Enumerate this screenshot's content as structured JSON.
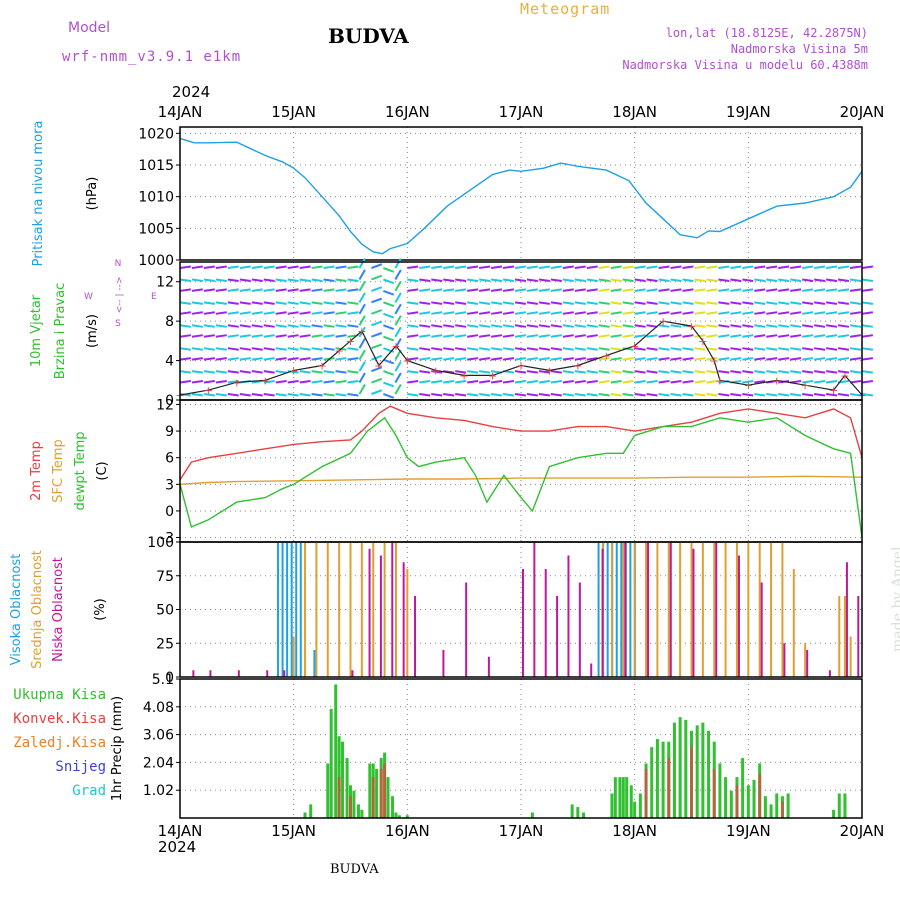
{
  "header": {
    "model_label": "Model",
    "model_name": "wrf-nmm_v3.9.1 e1km",
    "station": "BUDVA",
    "product": "Meteogram",
    "coords": "lon,lat (18.8125E, 42.2875N)",
    "elevation": "Nadmorska Visina 5m",
    "model_elevation": "Nadmorska Visina u modelu 60.4388m",
    "year": "2024",
    "footer_station": "BUDVA",
    "watermark": "made by Angel"
  },
  "colors": {
    "pressure": "#1ea0e6",
    "temp2m": "#e84040",
    "sfc_temp": "#e0a030",
    "dewpoint": "#30c030",
    "high_cloud": "#1ea0e6",
    "mid_cloud": "#e0a030",
    "low_cloud": "#c0189c",
    "total_precip": "#30c030",
    "conv_precip": "#e84040",
    "frozen_precip": "#f08020",
    "snow": "#4040e0",
    "grad": "#20c8c8",
    "title_purple": "#b050d0",
    "product_orange": "#e8b040"
  },
  "chart_data": [
    {
      "type": "line",
      "panel": "pressure",
      "labels": [
        "Pritisak na nivou mora",
        "(hPa)"
      ],
      "x_ticks": [
        "14JAN",
        "15JAN",
        "16JAN",
        "17JAN",
        "18JAN",
        "19JAN",
        "20JAN"
      ],
      "x_range_days": [
        0,
        6
      ],
      "ylim": [
        1000,
        1021
      ],
      "y_ticks": [
        1000,
        1005,
        1010,
        1015,
        1020
      ],
      "grid": true,
      "series": [
        {
          "name": "Pritisak na nivou mora",
          "x": [
            0,
            0.125,
            0.25,
            0.5,
            0.75,
            0.9,
            1.0,
            1.1,
            1.25,
            1.4,
            1.5,
            1.6,
            1.7,
            1.78,
            1.85,
            2.0,
            2.15,
            2.35,
            2.55,
            2.75,
            2.9,
            3.0,
            3.2,
            3.35,
            3.5,
            3.75,
            3.95,
            4.1,
            4.25,
            4.4,
            4.55,
            4.65,
            4.75,
            5.0,
            5.25,
            5.5,
            5.75,
            5.9,
            6.0
          ],
          "y": [
            1019.2,
            1018.5,
            1018.5,
            1018.6,
            1016.5,
            1015.5,
            1014.5,
            1013.0,
            1010.0,
            1007.0,
            1004.5,
            1002.5,
            1001.3,
            1001.0,
            1001.8,
            1002.6,
            1005.0,
            1008.5,
            1011.0,
            1013.5,
            1014.2,
            1014.0,
            1014.5,
            1015.3,
            1014.8,
            1014.2,
            1012.5,
            1009.0,
            1006.5,
            1004.0,
            1003.5,
            1004.6,
            1004.5,
            1006.5,
            1008.5,
            1009.0,
            1010.0,
            1011.5,
            1014.0
          ]
        }
      ]
    },
    {
      "type": "barbs",
      "panel": "wind",
      "labels": [
        "10m Vjetar",
        "Brzina i Pravac",
        "(m/s)"
      ],
      "direction_legend": [
        "W",
        "<-- | -->",
        "E",
        "N",
        "S"
      ],
      "ylim": [
        0,
        14
      ],
      "y_ticks": [
        0,
        4,
        8,
        12
      ],
      "grid": true,
      "series": [
        {
          "name": "Brzina",
          "x": [
            0,
            0.25,
            0.5,
            0.75,
            1.0,
            1.25,
            1.4,
            1.5,
            1.6,
            1.75,
            1.9,
            2.0,
            2.25,
            2.5,
            2.75,
            3.0,
            3.25,
            3.5,
            3.75,
            4.0,
            4.25,
            4.5,
            4.6,
            4.7,
            4.75,
            5.0,
            5.25,
            5.5,
            5.75,
            5.85,
            6.0
          ],
          "y": [
            0.5,
            1.0,
            1.8,
            2.0,
            3.0,
            3.5,
            5.0,
            6.0,
            7.0,
            3.5,
            5.5,
            4.0,
            3.0,
            2.5,
            2.5,
            3.5,
            3.0,
            3.5,
            4.5,
            5.5,
            8.0,
            7.5,
            6.0,
            4.0,
            2.0,
            1.5,
            2.0,
            1.5,
            1.0,
            2.5,
            0.5
          ]
        }
      ]
    },
    {
      "type": "line",
      "panel": "temperature",
      "labels": [
        "2m Temp",
        "SFC Temp",
        "dewpt Temp",
        "(C)"
      ],
      "ylim": [
        -3.5,
        12.5
      ],
      "y_ticks": [
        -3,
        0,
        3,
        6,
        9,
        12
      ],
      "grid": true,
      "series": [
        {
          "name": "2m Temp",
          "x": [
            0,
            0.1,
            0.25,
            0.5,
            0.75,
            1.0,
            1.25,
            1.5,
            1.6,
            1.75,
            1.85,
            2.0,
            2.25,
            2.5,
            2.75,
            3.0,
            3.25,
            3.5,
            3.75,
            4.0,
            4.25,
            4.5,
            4.75,
            5.0,
            5.25,
            5.5,
            5.75,
            5.9,
            6.0
          ],
          "y": [
            3.5,
            5.5,
            6.0,
            6.5,
            7.0,
            7.5,
            7.8,
            8.0,
            9.0,
            11.0,
            11.8,
            11.0,
            10.5,
            10.2,
            9.5,
            9.0,
            9.0,
            9.5,
            9.5,
            9.0,
            9.5,
            10.0,
            11.0,
            11.5,
            11.0,
            10.5,
            11.5,
            10.5,
            6.0
          ]
        },
        {
          "name": "SFC Temp",
          "x": [
            0,
            0.25,
            0.5,
            1.0,
            1.5,
            2.0,
            2.5,
            3.0,
            3.5,
            4.0,
            4.5,
            5.0,
            5.5,
            6.0
          ],
          "y": [
            3.0,
            3.2,
            3.3,
            3.4,
            3.5,
            3.6,
            3.6,
            3.7,
            3.7,
            3.7,
            3.8,
            3.8,
            3.9,
            3.8
          ]
        },
        {
          "name": "dewpt Temp",
          "x": [
            0,
            0.1,
            0.25,
            0.5,
            0.75,
            0.9,
            1.0,
            1.25,
            1.5,
            1.65,
            1.8,
            1.9,
            2.0,
            2.1,
            2.25,
            2.5,
            2.6,
            2.7,
            2.85,
            3.0,
            3.1,
            3.25,
            3.5,
            3.75,
            3.9,
            4.0,
            4.25,
            4.5,
            4.75,
            5.0,
            5.25,
            5.5,
            5.75,
            5.9,
            6.0
          ],
          "y": [
            3.0,
            -1.8,
            -1.0,
            1.0,
            1.5,
            2.5,
            3.0,
            5.0,
            6.5,
            9.0,
            10.5,
            8.5,
            6.0,
            5.0,
            5.5,
            6.0,
            4.0,
            1.0,
            4.0,
            1.5,
            0.0,
            5.0,
            6.0,
            6.5,
            6.5,
            8.5,
            9.5,
            9.5,
            10.5,
            10.0,
            10.5,
            8.5,
            7.0,
            6.5,
            -3.0
          ]
        }
      ]
    },
    {
      "type": "bar",
      "panel": "clouds",
      "labels": [
        "Visoka Oblacnost",
        "Srednja Oblacnost",
        "Niska Oblacnost",
        "(%)"
      ],
      "ylim": [
        0,
        100
      ],
      "y_ticks": [
        0,
        25,
        50,
        75,
        100
      ],
      "grid": true,
      "series": [
        {
          "name": "Visoka Oblacnost",
          "x": [
            0.88,
            0.92,
            0.96,
            1.0,
            1.04,
            1.08,
            1.2,
            3.7,
            3.74,
            3.78,
            3.82,
            3.86,
            3.9,
            3.94,
            3.98,
            4.02
          ],
          "y": [
            100,
            100,
            100,
            100,
            100,
            100,
            20,
            100,
            100,
            100,
            100,
            100,
            100,
            100,
            100,
            100
          ]
        },
        {
          "name": "Srednja Oblacnost",
          "x": [
            1.0,
            1.1,
            1.2,
            1.3,
            1.4,
            1.5,
            1.6,
            1.7,
            1.8,
            1.9,
            2.0,
            3.72,
            3.8,
            3.9,
            4.0,
            4.1,
            4.2,
            4.3,
            4.4,
            4.5,
            4.6,
            4.7,
            4.8,
            4.9,
            5.0,
            5.1,
            5.2,
            5.3,
            5.4,
            5.5,
            5.8,
            5.85,
            5.9
          ],
          "y": [
            30,
            100,
            100,
            100,
            100,
            100,
            100,
            100,
            100,
            100,
            80,
            100,
            100,
            100,
            100,
            100,
            100,
            100,
            100,
            100,
            100,
            100,
            100,
            100,
            100,
            100,
            100,
            100,
            80,
            25,
            60,
            60,
            30
          ]
        },
        {
          "name": "Niska Oblacnost",
          "x": [
            0.1,
            0.25,
            0.5,
            0.75,
            0.9,
            1.5,
            1.65,
            1.75,
            1.85,
            1.95,
            2.05,
            2.3,
            2.5,
            2.7,
            3.0,
            3.1,
            3.2,
            3.3,
            3.4,
            3.5,
            3.6,
            3.7,
            3.9,
            4.1,
            4.3,
            4.5,
            4.7,
            4.9,
            5.1,
            5.3,
            5.5,
            5.7,
            5.85,
            5.95
          ],
          "y": [
            5,
            5,
            5,
            5,
            5,
            5,
            95,
            90,
            100,
            85,
            60,
            20,
            70,
            15,
            80,
            100,
            80,
            60,
            90,
            70,
            10,
            95,
            100,
            100,
            100,
            95,
            100,
            90,
            70,
            25,
            20,
            5,
            85,
            60
          ]
        }
      ]
    },
    {
      "type": "bar",
      "panel": "precipitation",
      "labels": [
        "Ukupna Kisa",
        "Konvek.Kisa",
        "Zaledj.Kisa",
        "Snijeg",
        "Grad",
        "1hr Precip (mm)"
      ],
      "ylim": [
        0,
        5.1
      ],
      "y_ticks": [
        1.02,
        2.04,
        3.06,
        4.08,
        5.1
      ],
      "grid": true,
      "series": [
        {
          "name": "Ukupna Kisa",
          "x": [
            1.1,
            1.15,
            1.3,
            1.33,
            1.37,
            1.4,
            1.43,
            1.47,
            1.5,
            1.53,
            1.57,
            1.6,
            1.67,
            1.7,
            1.73,
            1.77,
            1.8,
            1.83,
            1.87,
            1.9,
            1.93,
            2.0,
            3.1,
            3.45,
            3.5,
            3.55,
            3.8,
            3.83,
            3.87,
            3.9,
            3.93,
            3.97,
            4.0,
            4.05,
            4.1,
            4.15,
            4.2,
            4.25,
            4.3,
            4.35,
            4.4,
            4.45,
            4.5,
            4.55,
            4.6,
            4.65,
            4.7,
            4.75,
            4.8,
            4.85,
            4.9,
            4.95,
            5.0,
            5.05,
            5.1,
            5.15,
            5.2,
            5.25,
            5.3,
            5.35,
            5.75,
            5.8,
            5.85
          ],
          "y": [
            0.2,
            0.5,
            2.0,
            4.0,
            4.9,
            3.0,
            2.8,
            2.2,
            1.2,
            1.0,
            0.5,
            0.3,
            2.0,
            2.0,
            1.8,
            2.2,
            2.4,
            1.5,
            0.8,
            0.2,
            0.1,
            0.1,
            0.2,
            0.5,
            0.4,
            0.2,
            0.9,
            1.5,
            1.5,
            1.5,
            1.5,
            1.2,
            0.6,
            0.9,
            2.0,
            2.6,
            2.9,
            2.8,
            2.8,
            3.5,
            3.7,
            3.6,
            3.2,
            3.4,
            3.5,
            3.2,
            2.8,
            2.0,
            1.5,
            1.0,
            1.5,
            2.2,
            1.2,
            1.4,
            2.0,
            0.8,
            0.5,
            0.9,
            0.8,
            0.9,
            0.3,
            0.9,
            0.9
          ]
        },
        {
          "name": "Konvek.Kisa",
          "x": [
            1.4,
            1.5,
            1.7,
            1.77,
            1.8,
            4.1,
            4.3,
            4.5,
            4.7,
            4.9,
            5.1,
            5.3
          ],
          "y": [
            1.5,
            0.8,
            1.5,
            1.8,
            2.0,
            1.8,
            2.2,
            2.6,
            1.8,
            1.2,
            1.6,
            0.6
          ]
        }
      ]
    }
  ]
}
